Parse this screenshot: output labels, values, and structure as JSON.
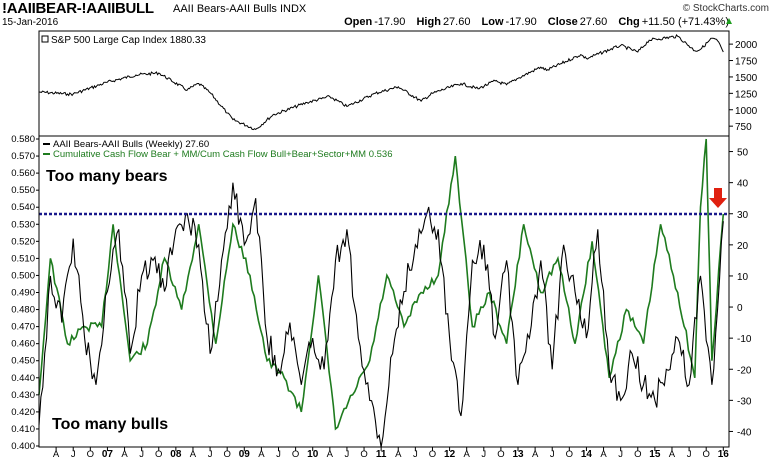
{
  "header": {
    "symbol": "!AAIIBEAR-!AAIIBULL",
    "description": "AAII Bears-AAII Bulls INDX",
    "date": "15-Jan-2016",
    "ohlc": {
      "open_label": "Open",
      "open": "-17.90",
      "high_label": "High",
      "high": "27.60",
      "low_label": "Low",
      "low": "-17.90",
      "close_label": "Close",
      "close": "27.60",
      "chg_label": "Chg",
      "chg": "+11.50 (+71.43%)",
      "chg_icon": "up-triangle-icon"
    },
    "copyright": "© StockCharts.com"
  },
  "chart_data": [
    {
      "type": "line",
      "legend": [
        "S&P 500 Large Cap Index 1880.33"
      ],
      "x_start": "2006-01",
      "x_end": "2016-01",
      "ylim": [
        600,
        2200
      ],
      "y_ticks": [
        750,
        1000,
        1250,
        1500,
        1750,
        2000
      ],
      "series": [
        {
          "name": "S&P 500 Large Cap Index",
          "color": "#000000",
          "x": [
            "2006-01",
            "2006-06",
            "2006-07",
            "2007-01",
            "2007-06",
            "2007-10",
            "2008-03",
            "2008-05",
            "2008-07",
            "2008-10",
            "2008-11",
            "2009-03",
            "2009-06",
            "2009-12",
            "2010-04",
            "2010-07",
            "2010-12",
            "2011-04",
            "2011-08",
            "2011-10",
            "2012-03",
            "2012-06",
            "2012-09",
            "2012-11",
            "2013-01",
            "2013-05",
            "2013-06",
            "2013-12",
            "2014-01",
            "2014-07",
            "2014-10",
            "2014-12",
            "2015-05",
            "2015-08",
            "2015-09",
            "2015-11",
            "2015-12",
            "2016-01"
          ],
          "values": [
            1270,
            1240,
            1240,
            1420,
            1530,
            1560,
            1300,
            1400,
            1260,
            950,
            850,
            700,
            920,
            1110,
            1200,
            1050,
            1250,
            1350,
            1130,
            1250,
            1400,
            1320,
            1440,
            1380,
            1480,
            1650,
            1600,
            1840,
            1780,
            1980,
            1880,
            2060,
            2120,
            1900,
            1920,
            2090,
            2050,
            1880
          ]
        }
      ]
    },
    {
      "type": "line",
      "x_ticks": [
        "A",
        "J",
        "O",
        "07",
        "A",
        "J",
        "O",
        "08",
        "A",
        "J",
        "O",
        "09",
        "A",
        "J",
        "O",
        "10",
        "A",
        "J",
        "O",
        "11",
        "A",
        "J",
        "O",
        "12",
        "A",
        "J",
        "O",
        "13",
        "A",
        "J",
        "O",
        "14",
        "A",
        "J",
        "O",
        "15",
        "A",
        "J",
        "O",
        "16"
      ],
      "left_axis": {
        "ylim": [
          0.4,
          0.58
        ],
        "ticks": [
          "0.400",
          "0.410",
          "0.420",
          "0.430",
          "0.440",
          "0.450",
          "0.460",
          "0.470",
          "0.480",
          "0.490",
          "0.500",
          "0.510",
          "0.520",
          "0.530",
          "0.540",
          "0.550",
          "0.560",
          "0.570",
          "0.580"
        ]
      },
      "right_axis": {
        "ylim": [
          -45,
          55
        ],
        "ticks": [
          "-40",
          "-30",
          "-20",
          "-10",
          "0",
          "10",
          "20",
          "30",
          "40",
          "50"
        ]
      },
      "legend": [
        "AAII Bears-AAII Bulls (Weekly) 27.60",
        "Cumulative Cash Flow Bear + MM/Cum Cash Flow Bull+Bear+Sector+MM 0.536"
      ],
      "annotations": [
        "Too many bears",
        "Too many bulls"
      ],
      "reference_line": {
        "axis": "left",
        "value": 0.536,
        "color": "#1a1a8c",
        "style": "dotted"
      },
      "marker": {
        "icon": "red-down-arrow-icon",
        "color": "#e02010"
      },
      "series": [
        {
          "name": "AAII Bears-AAII Bulls (Weekly)",
          "axis": "right",
          "color": "#000000",
          "x": [
            "2006-01",
            "2006-03",
            "2006-05",
            "2006-07",
            "2006-09",
            "2006-11",
            "2007-01",
            "2007-03",
            "2007-05",
            "2007-07",
            "2007-09",
            "2007-11",
            "2008-01",
            "2008-03",
            "2008-05",
            "2008-07",
            "2008-09",
            "2008-11",
            "2009-01",
            "2009-03",
            "2009-05",
            "2009-07",
            "2009-09",
            "2009-11",
            "2010-01",
            "2010-03",
            "2010-05",
            "2010-07",
            "2010-09",
            "2010-11",
            "2011-01",
            "2011-03",
            "2011-05",
            "2011-07",
            "2011-09",
            "2011-11",
            "2012-01",
            "2012-03",
            "2012-05",
            "2012-07",
            "2012-09",
            "2012-11",
            "2013-01",
            "2013-03",
            "2013-05",
            "2013-07",
            "2013-09",
            "2013-11",
            "2014-01",
            "2014-03",
            "2014-05",
            "2014-07",
            "2014-09",
            "2014-11",
            "2015-01",
            "2015-03",
            "2015-05",
            "2015-07",
            "2015-09",
            "2015-11",
            "2016-01"
          ],
          "values": [
            -38,
            10,
            -5,
            22,
            -10,
            -25,
            5,
            25,
            -15,
            10,
            15,
            5,
            25,
            30,
            20,
            -15,
            15,
            40,
            20,
            35,
            -10,
            -20,
            -5,
            -25,
            -10,
            -20,
            15,
            25,
            -10,
            -30,
            -45,
            -15,
            5,
            20,
            30,
            25,
            -10,
            -35,
            15,
            20,
            -10,
            15,
            -25,
            -10,
            15,
            -20,
            20,
            5,
            -10,
            25,
            -20,
            -30,
            -15,
            -25,
            -30,
            -20,
            -10,
            -25,
            10,
            -25,
            27.6
          ]
        },
        {
          "name": "Cumulative Cash Flow Bear + MM/Cum Cash Flow Bull+Bear+Sector+MM",
          "axis": "left",
          "color": "#1e7b1e",
          "x": [
            "2006-01",
            "2006-03",
            "2006-06",
            "2006-09",
            "2006-12",
            "2007-02",
            "2007-05",
            "2007-08",
            "2007-11",
            "2008-02",
            "2008-05",
            "2008-08",
            "2008-11",
            "2009-02",
            "2009-05",
            "2009-08",
            "2009-11",
            "2010-02",
            "2010-05",
            "2010-08",
            "2010-11",
            "2011-02",
            "2011-05",
            "2011-08",
            "2011-11",
            "2012-02",
            "2012-05",
            "2012-08",
            "2012-11",
            "2013-02",
            "2013-05",
            "2013-08",
            "2013-11",
            "2014-02",
            "2014-05",
            "2014-08",
            "2014-11",
            "2015-02",
            "2015-05",
            "2015-08",
            "2015-09",
            "2015-10",
            "2015-11",
            "2016-01"
          ],
          "values": [
            0.43,
            0.51,
            0.46,
            0.47,
            0.47,
            0.53,
            0.45,
            0.46,
            0.51,
            0.48,
            0.53,
            0.46,
            0.53,
            0.5,
            0.45,
            0.44,
            0.42,
            0.5,
            0.41,
            0.43,
            0.45,
            0.5,
            0.47,
            0.49,
            0.5,
            0.57,
            0.47,
            0.49,
            0.46,
            0.53,
            0.49,
            0.51,
            0.46,
            0.52,
            0.44,
            0.48,
            0.46,
            0.53,
            0.49,
            0.44,
            0.54,
            0.58,
            0.45,
            0.536
          ]
        }
      ]
    }
  ]
}
